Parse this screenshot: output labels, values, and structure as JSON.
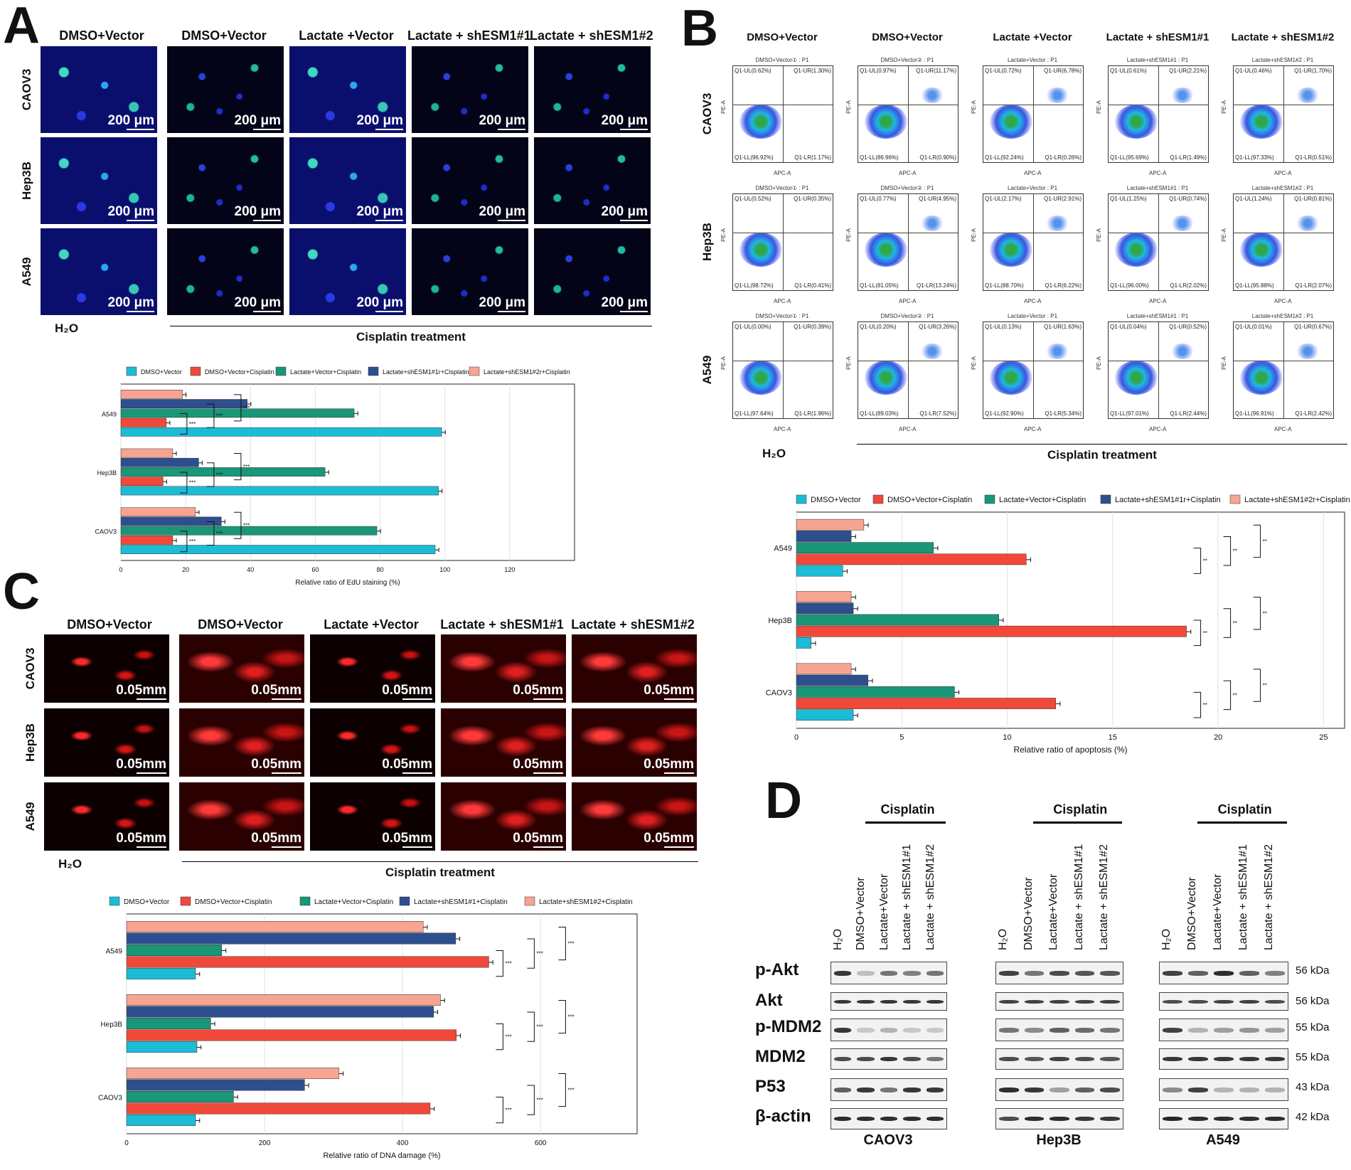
{
  "panelA": {
    "letter": "A",
    "columns": [
      "DMSO+Vector",
      "DMSO+Vector",
      "Lactate +Vector",
      "Lactate + shESM1#1",
      "Lactate + shESM1#2"
    ],
    "rows": [
      "CAOV3",
      "Hep3B",
      "A549"
    ],
    "scale": "200 μm",
    "control_label": "H₂O",
    "treatment_label": "Cisplatin treatment"
  },
  "panelB": {
    "letter": "B",
    "columns": [
      "DMSO+Vector",
      "DMSO+Vector",
      "Lactate +Vector",
      "Lactate + shESM1#1",
      "Lactate + shESM1#2"
    ],
    "rows": [
      "CAOV3",
      "Hep3B",
      "A549"
    ],
    "control_label": "H₂O",
    "treatment_label": "Cisplatin treatment",
    "axis_x": "APC-A",
    "axis_y": "PE-A",
    "plots": [
      [
        {
          "title": "DMSO+Vector① : P1",
          "ul": "Q1-UL(0.62%)",
          "ur": "Q1-UR(1.30%)",
          "ll": "Q1-LL(96.92%)",
          "lr": "Q1-LR(1.17%)"
        },
        {
          "title": "DMSO+Vector② : P1",
          "ul": "Q1-UL(0.97%)",
          "ur": "Q1-UR(11.17%)",
          "ll": "Q1-LL(86.96%)",
          "lr": "Q1-LR(0.90%)"
        },
        {
          "title": "Lactate+Vector : P1",
          "ul": "Q1-UL(0.72%)",
          "ur": "Q1-UR(6.78%)",
          "ll": "Q1-LL(92.24%)",
          "lr": "Q1-LR(0.26%)"
        },
        {
          "title": "Lactate+shESM1#1 : P1",
          "ul": "Q1-UL(0.61%)",
          "ur": "Q1-UR(2.21%)",
          "ll": "Q1-LL(95.69%)",
          "lr": "Q1-LR(1.49%)"
        },
        {
          "title": "Lactate+shESM1#2 : P1",
          "ul": "Q1-UL(0.46%)",
          "ur": "Q1-UR(1.70%)",
          "ll": "Q1-LL(97.33%)",
          "lr": "Q1-LR(0.51%)"
        }
      ],
      [
        {
          "title": "DMSO+Vector① : P1",
          "ul": "Q1-UL(0.52%)",
          "ur": "Q1-UR(0.35%)",
          "ll": "Q1-LL(98.72%)",
          "lr": "Q1-LR(0.41%)"
        },
        {
          "title": "DMSO+Vector② : P1",
          "ul": "Q1-UL(0.77%)",
          "ur": "Q1-UR(4.95%)",
          "ll": "Q1-LL(81.05%)",
          "lr": "Q1-LR(13.24%)"
        },
        {
          "title": "Lactate+Vector : P1",
          "ul": "Q1-UL(2.17%)",
          "ur": "Q1-UR(2.91%)",
          "ll": "Q1-LL(88.70%)",
          "lr": "Q1-LR(6.22%)"
        },
        {
          "title": "Lactate+shESM1#1 : P1",
          "ul": "Q1-UL(1.25%)",
          "ur": "Q1-UR(0.74%)",
          "ll": "Q1-LL(96.00%)",
          "lr": "Q1-LR(2.02%)"
        },
        {
          "title": "Lactate+shESM1#2 : P1",
          "ul": "Q1-UL(1.24%)",
          "ur": "Q1-UR(0.81%)",
          "ll": "Q1-LL(95.88%)",
          "lr": "Q1-LR(2.07%)"
        }
      ],
      [
        {
          "title": "DMSO+Vector① : P1",
          "ul": "Q1-UL(0.00%)",
          "ur": "Q1-UR(0.39%)",
          "ll": "Q1-LL(97.64%)",
          "lr": "Q1-LR(1.96%)"
        },
        {
          "title": "DMSO+Vector② : P1",
          "ul": "Q1-UL(0.20%)",
          "ur": "Q1-UR(3.26%)",
          "ll": "Q1-LL(89.03%)",
          "lr": "Q1-LR(7.52%)"
        },
        {
          "title": "Lactate+Vector : P1",
          "ul": "Q1-UL(0.13%)",
          "ur": "Q1-UR(1.63%)",
          "ll": "Q1-LL(92.90%)",
          "lr": "Q1-LR(5.34%)"
        },
        {
          "title": "Lactate+shESM1#1 : P1",
          "ul": "Q1-UL(0.04%)",
          "ur": "Q1-UR(0.52%)",
          "ll": "Q1-LL(97.01%)",
          "lr": "Q1-LR(2.44%)"
        },
        {
          "title": "Lactate+shESM1#2 : P1",
          "ul": "Q1-UL(0.01%)",
          "ur": "Q1-UR(0.67%)",
          "ll": "Q1-LL(96.91%)",
          "lr": "Q1-LR(2.42%)"
        }
      ]
    ]
  },
  "panelC": {
    "letter": "C",
    "columns": [
      "DMSO+Vector",
      "DMSO+Vector",
      "Lactate +Vector",
      "Lactate + shESM1#1",
      "Lactate + shESM1#2"
    ],
    "rows": [
      "CAOV3",
      "Hep3B",
      "A549"
    ],
    "scale": "0.05mm",
    "control_label": "H₂O",
    "treatment_label": "Cisplatin treatment"
  },
  "panelD": {
    "letter": "D",
    "cisplatin_label": "Cisplatin",
    "lanes": [
      "H₂O",
      "DMSO+Vector",
      "Lactate+Vector",
      "Lactate + shESM1#1",
      "Lactate + shESM1#2"
    ],
    "cells": [
      "CAOV3",
      "Hep3B",
      "A549"
    ],
    "proteins": [
      "p-Akt",
      "Akt",
      "p-MDM2",
      "MDM2",
      "P53",
      "β-actin"
    ],
    "kda": [
      "56 kDa",
      "56 kDa",
      "55 kDa",
      "55 kDa",
      "43 kDa",
      "42 kDa"
    ]
  },
  "colors": {
    "series": [
      "#1cbcd6",
      "#f0493a",
      "#1a9678",
      "#2d4f8e",
      "#f7a493"
    ]
  },
  "chart_data": [
    {
      "id": "edu",
      "type": "bar",
      "orientation": "horizontal",
      "categories": [
        "CAOV3",
        "Hep3B",
        "A549"
      ],
      "series": [
        {
          "name": "DMSO+Vector",
          "values": [
            97,
            98,
            99
          ]
        },
        {
          "name": "DMSO+Vector+Cisplatin",
          "values": [
            16,
            13,
            14
          ]
        },
        {
          "name": "Lactate+Vector+Cisplatin",
          "values": [
            79,
            63,
            72
          ]
        },
        {
          "name": "Lactate+shESM1#1r+Cisplatin",
          "values": [
            31,
            24,
            39
          ]
        },
        {
          "name": "Lactate+shESM1#2r+Cisplatin",
          "values": [
            23,
            16,
            19
          ]
        }
      ],
      "xlabel": "Relative ratio of EdU staining (%)",
      "xlim": [
        0,
        140
      ],
      "xticks": [
        0,
        20,
        40,
        60,
        80,
        100,
        120
      ],
      "significance": "***",
      "legend": "top"
    },
    {
      "id": "apoptosis",
      "type": "bar",
      "orientation": "horizontal",
      "categories": [
        "CAOV3",
        "Hep3B",
        "A549"
      ],
      "series": [
        {
          "name": "DMSO+Vector",
          "values": [
            2.7,
            0.7,
            2.2
          ]
        },
        {
          "name": "DMSO+Vector+Cisplatin",
          "values": [
            12.3,
            18.5,
            10.9
          ]
        },
        {
          "name": "Lactate+Vector+Cisplatin",
          "values": [
            7.5,
            9.6,
            6.5
          ]
        },
        {
          "name": "Lactate+shESM1#1r+Cisplatin",
          "values": [
            3.4,
            2.7,
            2.6
          ]
        },
        {
          "name": "Lactate+shESM1#2r+Cisplatin",
          "values": [
            2.6,
            2.6,
            3.2
          ]
        }
      ],
      "xlabel": "Relative ratio of apoptosis (%)",
      "xlim": [
        0,
        26
      ],
      "xticks": [
        0,
        5,
        10,
        15,
        20,
        25
      ],
      "significance": "**",
      "legend": "top"
    },
    {
      "id": "dna",
      "type": "bar",
      "orientation": "horizontal",
      "categories": [
        "CAOV3",
        "Hep3B",
        "A549"
      ],
      "series": [
        {
          "name": "DMSO+Vector",
          "values": [
            100,
            102,
            100
          ]
        },
        {
          "name": "DMSO+Vector+Cisplatin",
          "values": [
            440,
            478,
            525
          ]
        },
        {
          "name": "Lactate+Vector+Cisplatin",
          "values": [
            155,
            122,
            138
          ]
        },
        {
          "name": "Lactate+shESM1#1+Cisplatin",
          "values": [
            258,
            445,
            477
          ]
        },
        {
          "name": "Lactate+shESM1#2+Cisplatin",
          "values": [
            308,
            455,
            430
          ]
        }
      ],
      "xlabel": "Relative ratio of DNA damage (%)",
      "xlim": [
        0,
        740
      ],
      "xticks": [
        0,
        200,
        400,
        600
      ],
      "significance": "***",
      "legend": "top"
    }
  ]
}
